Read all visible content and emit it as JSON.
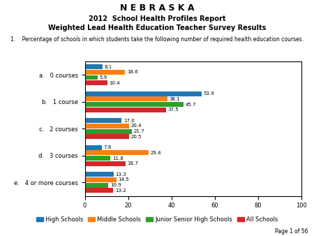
{
  "chart_data": {
    "type": "bar",
    "orientation": "horizontal",
    "title": "N E B R A S K A",
    "subtitle": [
      "2012  School Health Profiles Report",
      "Weighted Lead Health Education Teacher Survey Results"
    ],
    "annotations": [
      "1.    Percentage of schools in which students take the following number of required health education courses.",
      "Page 1 of 56"
    ],
    "categories": [
      "a.   0 courses",
      "b.   1 course",
      "c.   2 courses",
      "d.   3 courses",
      "e.   4 or more courses"
    ],
    "series": [
      {
        "name": "High Schools",
        "values": [
          8.1,
          53.9,
          17.0,
          7.8,
          13.3
        ]
      },
      {
        "name": "Middle Schools",
        "values": [
          18.6,
          38.1,
          20.4,
          29.4,
          14.5
        ]
      },
      {
        "name": "Junior Senior High Schools",
        "values": [
          5.9,
          45.7,
          21.7,
          11.8,
          10.9
        ]
      },
      {
        "name": "All Schools",
        "values": [
          10.4,
          37.5,
          20.5,
          18.7,
          13.2
        ]
      }
    ],
    "xlim": [
      0,
      100
    ],
    "xticks": [
      0,
      20,
      40,
      60,
      80,
      100
    ],
    "grid": false,
    "data_labels": true,
    "legend": "lower center"
  }
}
